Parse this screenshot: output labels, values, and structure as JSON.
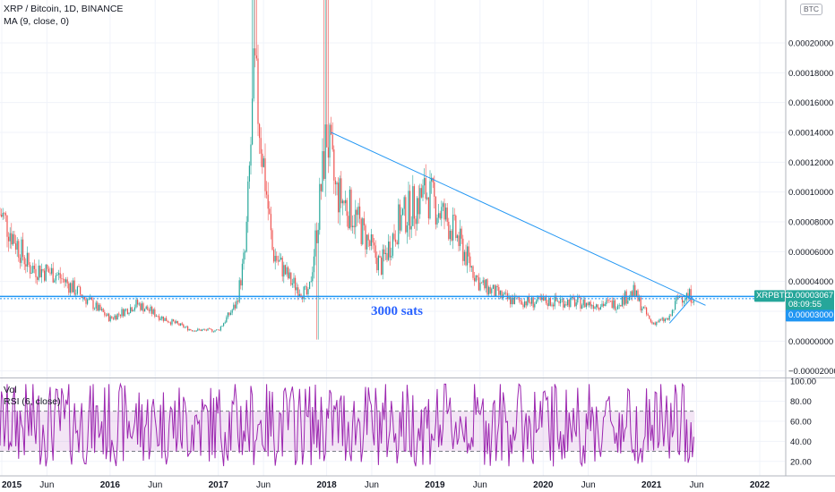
{
  "header": {
    "title": "XRP / Bitcoin, 1D, BINANCE",
    "indicator": "MA (9, close, 0)",
    "currency": "BTC"
  },
  "rsi_pane": {
    "vol_label": "Vol",
    "rsi_label": "RSI (6, close)"
  },
  "annotation": {
    "text": "3000 sats",
    "color": "#2962ff"
  },
  "badges": {
    "symbol": "XRPBTC",
    "last_price": "0.00003067",
    "countdown": "08:09:55",
    "level_price": "0.00003000"
  },
  "colors": {
    "up": "#26a69a",
    "down": "#ef5350",
    "hline": "#2196f3",
    "trendline": "#2196f3",
    "rsi": "#9c27b0",
    "rsi_band": "#9c27b0",
    "symbol_badge": "#26a69a",
    "level_badge": "#2196f3"
  },
  "chart_data": [
    {
      "type": "line",
      "title": "XRP / Bitcoin, 1D, BINANCE",
      "series": [
        {
          "name": "XRPBTC",
          "x": [
            "2015-01",
            "2015-04",
            "2015-07",
            "2015-10",
            "2016-01",
            "2016-04",
            "2016-07",
            "2016-10",
            "2017-01",
            "2017-03",
            "2017-04",
            "2017-05",
            "2017-06",
            "2017-07",
            "2017-09",
            "2017-11",
            "2017-12",
            "2018-01",
            "2018-02",
            "2018-04",
            "2018-07",
            "2018-09",
            "2018-12",
            "2019-03",
            "2019-06",
            "2019-09",
            "2019-12",
            "2020-03",
            "2020-06",
            "2020-09",
            "2020-11",
            "2021-01",
            "2021-03",
            "2021-04",
            "2021-05"
          ],
          "values": [
            8.5e-05,
            5e-05,
            4.5e-05,
            3e-05,
            1.5e-05,
            2.5e-05,
            1.5e-05,
            7.5e-06,
            7.2e-06,
            2.5e-05,
            6e-05,
            0.00018,
            0.00012,
            6e-05,
            4e-05,
            3e-05,
            8e-05,
            0.00014,
            0.0001,
            8.5e-05,
            5e-05,
            8e-05,
            0.0001,
            7.5e-05,
            3.8e-05,
            2.8e-05,
            2.6e-05,
            2.7e-05,
            2.5e-05,
            2.5e-05,
            3.3e-05,
            1.2e-05,
            1.5e-05,
            3e-05,
            3.067e-05
          ]
        }
      ],
      "x_tick_labels": [
        "2015",
        "Jun",
        "2016",
        "Jun",
        "2017",
        "Jun",
        "2018",
        "Jun",
        "2019",
        "Jun",
        "2020",
        "Jun",
        "2021",
        "Jun",
        "2022"
      ],
      "y_tick_labels": [
        "−0.00002000",
        "0.00000000",
        "0.00002000",
        "0.00004000",
        "0.00006000",
        "0.00008000",
        "0.00010000",
        "0.00012000",
        "0.00014000",
        "0.00016000",
        "0.00018000",
        "0.00020000"
      ],
      "ylim": [
        -2.2e-05,
        0.00023
      ],
      "horizontal_line": 3e-05,
      "trendline": {
        "from": [
          "2018-01",
          0.00014
        ],
        "to": [
          "2021-06",
          2.4e-05
        ]
      },
      "grid": true
    },
    {
      "type": "line",
      "title": "RSI (6, close)",
      "y_tick_labels": [
        "20.00",
        "40.00",
        "60.00",
        "80.00",
        "100.00"
      ],
      "ylim": [
        10,
        100
      ],
      "band": [
        30,
        70
      ],
      "grid": true
    }
  ]
}
